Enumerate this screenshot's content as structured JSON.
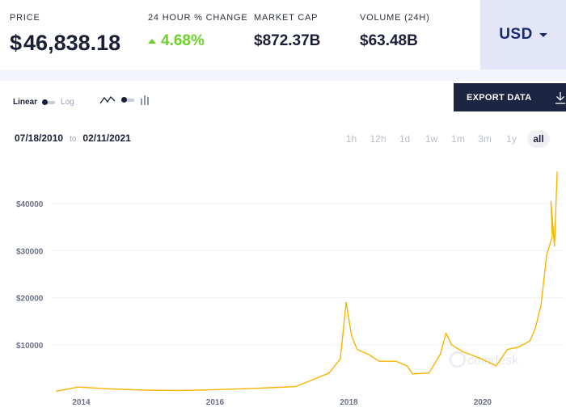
{
  "stats": {
    "price": {
      "label": "PRICE",
      "currency_symbol": "$",
      "value": "46,838.18"
    },
    "change": {
      "label": "24 HOUR % CHANGE",
      "value": "4.68%",
      "direction": "up",
      "color": "#6cd12a"
    },
    "market_cap": {
      "label": "MARKET CAP",
      "value": "$872.37B"
    },
    "volume": {
      "label": "VOLUME (24H)",
      "value": "$63.48B"
    }
  },
  "currency_select": {
    "selected": "USD",
    "icon": "chevron-down-icon"
  },
  "toolbar": {
    "scale_linear": "Linear",
    "scale_log": "Log",
    "scale_selected": "Linear",
    "chart_type_icons": [
      "line-chart-icon",
      "toggle-switch-icon",
      "bar-chart-icon"
    ],
    "export_label": "EXPORT DATA",
    "export_icon": "download-icon"
  },
  "range": {
    "start": "07/18/2010",
    "to": "to",
    "end": "02/11/2021",
    "periods": [
      "1h",
      "12h",
      "1d",
      "1w",
      "1m",
      "3m",
      "1y",
      "all"
    ],
    "active_period": "all"
  },
  "watermark": "coindesk",
  "colors": {
    "line": "#f7b500",
    "accent_dark": "#1c2541",
    "currency_bg": "#e2e6f7",
    "positive": "#6cd12a"
  },
  "chart_data": {
    "type": "line",
    "series": [
      {
        "x": [
          "2013-08",
          "2013-12",
          "2014-06",
          "2014-12",
          "2015-06",
          "2015-12",
          "2016-06",
          "2016-12",
          "2017-03",
          "2017-06",
          "2017-09",
          "2017-11",
          "2017-12-17",
          "2018-01",
          "2018-02",
          "2018-04",
          "2018-06",
          "2018-09",
          "2018-11",
          "2018-12",
          "2019-03",
          "2019-05",
          "2019-06",
          "2019-07",
          "2019-09",
          "2019-12",
          "2020-03",
          "2020-05",
          "2020-07",
          "2020-09",
          "2020-10",
          "2020-11",
          "2020-12",
          "2021-01",
          "2021-01-08",
          "2021-01-27",
          "2021-02-11"
        ],
        "values": [
          100,
          1000,
          600,
          350,
          250,
          420,
          650,
          950,
          1100,
          2500,
          4000,
          7000,
          19000,
          12000,
          9000,
          8000,
          6500,
          6500,
          5500,
          3800,
          4000,
          8000,
          12500,
          10000,
          8500,
          7200,
          5500,
          9000,
          9500,
          10800,
          13500,
          18500,
          29000,
          33000,
          40500,
          31000,
          46838
        ]
      }
    ],
    "xlabel": "",
    "ylabel": "",
    "x_ticks": [
      "2014",
      "2016",
      "2018",
      "2020"
    ],
    "y_ticks": [
      "$10000",
      "$20000",
      "$30000",
      "$40000"
    ],
    "y_tick_values": [
      10000,
      20000,
      30000,
      40000
    ],
    "ylim": [
      0,
      50000
    ],
    "xlim": [
      "2013-07",
      "2021-02-15"
    ],
    "grid": true,
    "legend": "none"
  }
}
